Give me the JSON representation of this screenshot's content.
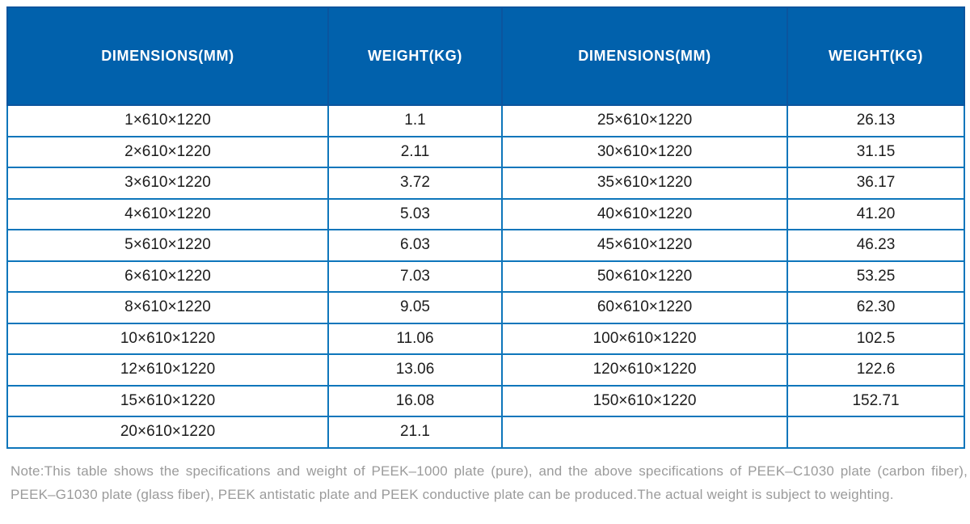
{
  "table": {
    "headers": [
      "DIMENSIONS(MM)",
      "WEIGHT(KG)",
      "DIMENSIONS(MM)",
      "WEIGHT(KG)"
    ],
    "rows": [
      [
        "1×610×1220",
        "1.1",
        "25×610×1220",
        "26.13"
      ],
      [
        "2×610×1220",
        "2.11",
        "30×610×1220",
        "31.15"
      ],
      [
        "3×610×1220",
        "3.72",
        "35×610×1220",
        "36.17"
      ],
      [
        "4×610×1220",
        "5.03",
        "40×610×1220",
        "41.20"
      ],
      [
        "5×610×1220",
        "6.03",
        "45×610×1220",
        "46.23"
      ],
      [
        "6×610×1220",
        "7.03",
        "50×610×1220",
        "53.25"
      ],
      [
        "8×610×1220",
        "9.05",
        "60×610×1220",
        "62.30"
      ],
      [
        "10×610×1220",
        "11.06",
        "100×610×1220",
        "102.5"
      ],
      [
        "12×610×1220",
        "13.06",
        "120×610×1220",
        "122.6"
      ],
      [
        "15×610×1220",
        "16.08",
        "150×610×1220",
        "152.71"
      ],
      [
        "20×610×1220",
        "21.1",
        "",
        ""
      ]
    ]
  },
  "note": {
    "text": "Note:This table shows the specifications and weight of PEEK–1000 plate (pure), and the above specifications of PEEK–C1030 plate (carbon fiber), PEEK–G1030 plate (glass fiber), PEEK antistatic plate and PEEK conductive plate can be produced.The actual weight is subject to weighting."
  },
  "colors": {
    "header_bg": "#0161ac",
    "header_border": "#0b559e",
    "grid_border": "#0e76bb",
    "cell_text": "#1c1c1c",
    "note_text": "#9b9b9b",
    "page_bg": "#ffffff"
  }
}
